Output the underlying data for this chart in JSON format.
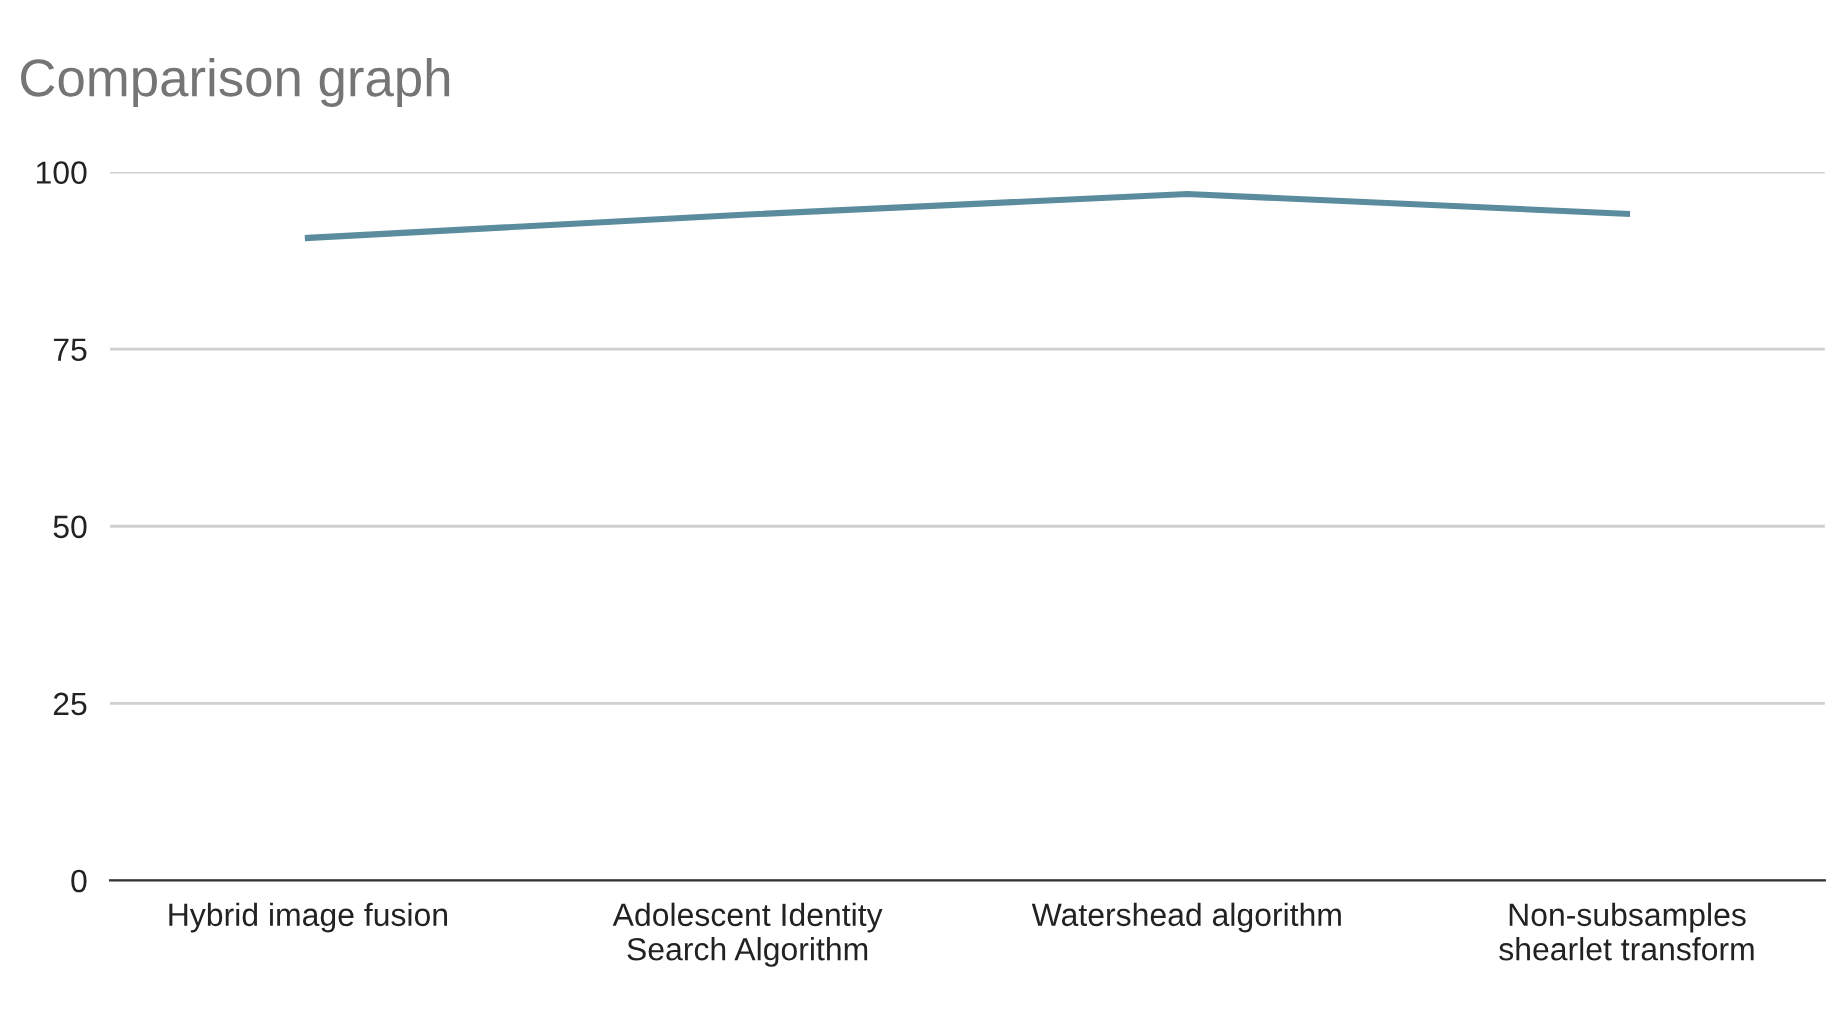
{
  "chart_data": {
    "type": "line",
    "title": "Comparison graph",
    "categories": [
      "Hybrid image fusion",
      "Adolescent Identity\nSearch Algorithm",
      "Watershead algorithm",
      "Non-subsamples\nshearlet transform"
    ],
    "series": [
      {
        "color": "#5b8c9e",
        "values": [
          90.7,
          94,
          96.9,
          94.1
        ]
      }
    ],
    "ylim": [
      0,
      100
    ],
    "yticks": [
      0,
      25,
      50,
      75,
      100
    ],
    "grid": "y",
    "legend": false,
    "marker": "none",
    "line_style": "solid"
  }
}
